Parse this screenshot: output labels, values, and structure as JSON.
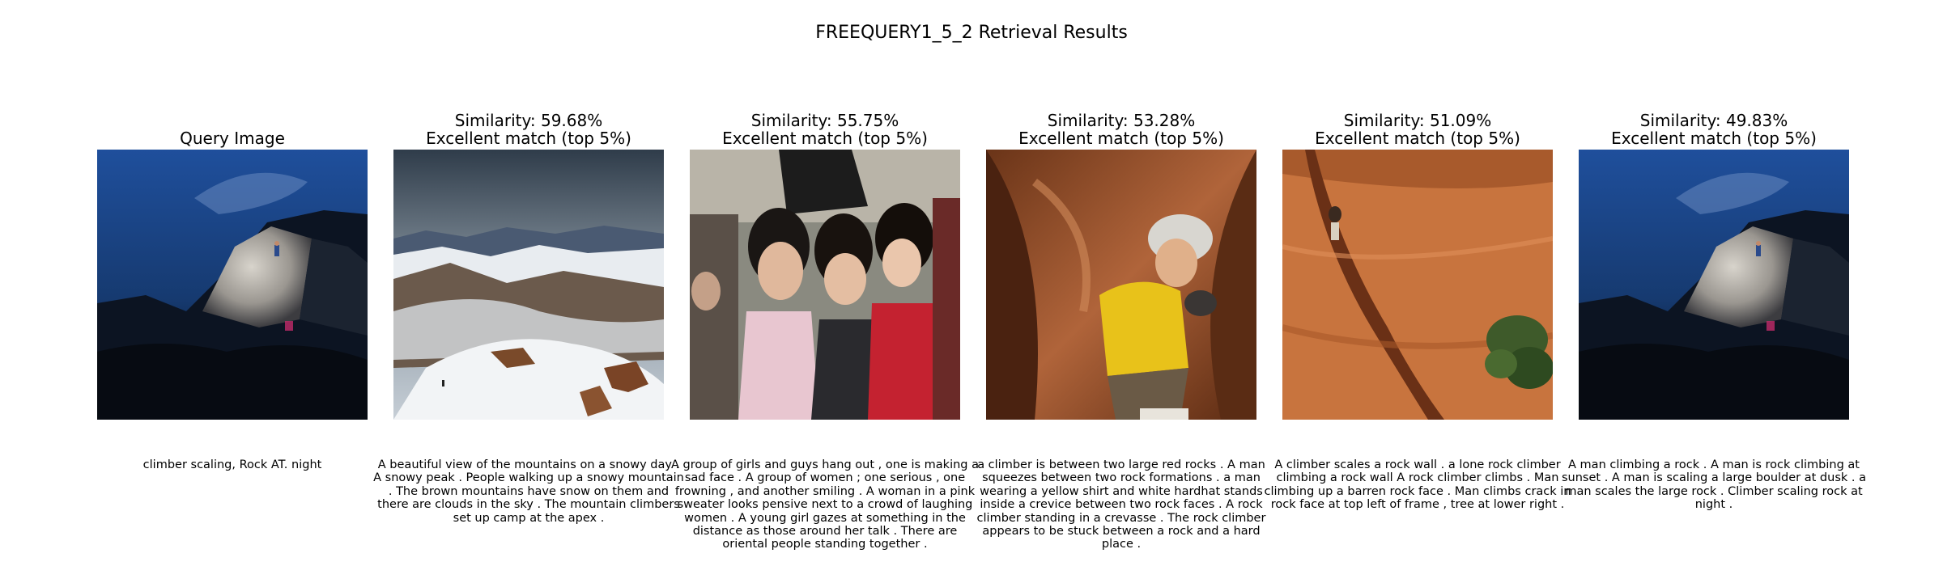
{
  "page": {
    "title": "FREEQUERY1_5_2 Retrieval Results"
  },
  "query": {
    "heading": "Query Image",
    "caption": "climber scaling, Rock AT. night"
  },
  "results": [
    {
      "similarity": "Similarity: 59.68%",
      "match": "Excellent match (top 5%)",
      "caption": "A beautiful view of the mountains on a snowy day . A snowy peak . People walking up a snowy mountain . The brown mountains have snow on them and there are clouds in the sky . The mountain climbers set up camp at the apex ."
    },
    {
      "similarity": "Similarity: 55.75%",
      "match": "Excellent match (top 5%)",
      "caption": "A group of girls and guys hang out , one is making a sad face . A group of women ; one serious , one frowning , and another smiling . A woman in a pink sweater looks pensive next to a crowd of laughing women . A young girl gazes at something in the distance as those around her talk . There are oriental people standing together ."
    },
    {
      "similarity": "Similarity: 53.28%",
      "match": "Excellent match (top 5%)",
      "caption": "a climber is between two large red rocks . A man squeezes between two rock formations . a man wearing a yellow shirt and white hardhat stands inside a crevice between two rock faces . A rock climber standing in a crevasse . The rock climber appears to be stuck between a rock and a hard place ."
    },
    {
      "similarity": "Similarity: 51.09%",
      "match": "Excellent match (top 5%)",
      "caption": "A climber scales a rock wall . a lone rock climber climbing a rock wall A rock climber climbs . Man climbing up a barren rock face . Man climbs crack in rock face at top left of frame , tree at lower right ."
    },
    {
      "similarity": "Similarity: 49.83%",
      "match": "Excellent match (top 5%)",
      "caption": "A man climbing a rock . A man is rock climbing at sunset . A man is scaling a large boulder at dusk . a man scales the large rock . Climber scaling rock at night ."
    }
  ]
}
